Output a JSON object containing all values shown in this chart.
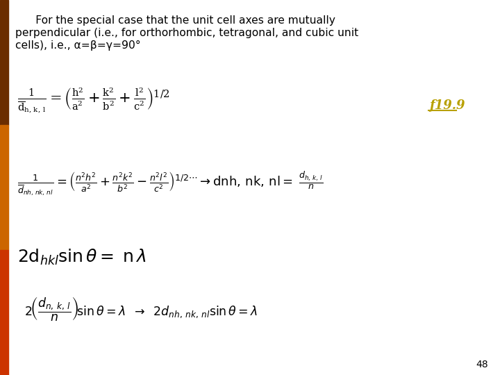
{
  "background_color": "#ffffff",
  "bar1_color": "#6B2D00",
  "bar2_color": "#CC6600",
  "bar3_color": "#CC3300",
  "slide_number": "48",
  "f19_9_color": "#B8A000",
  "text_color": "#000000",
  "title_line1": "      For the special case that the unit cell axes are mutually",
  "title_line2": "perpendicular (i.e., for orthorhombic, tetragonal, and cubic unit",
  "title_line3": "cells), i.e., α=β=γ=90°"
}
